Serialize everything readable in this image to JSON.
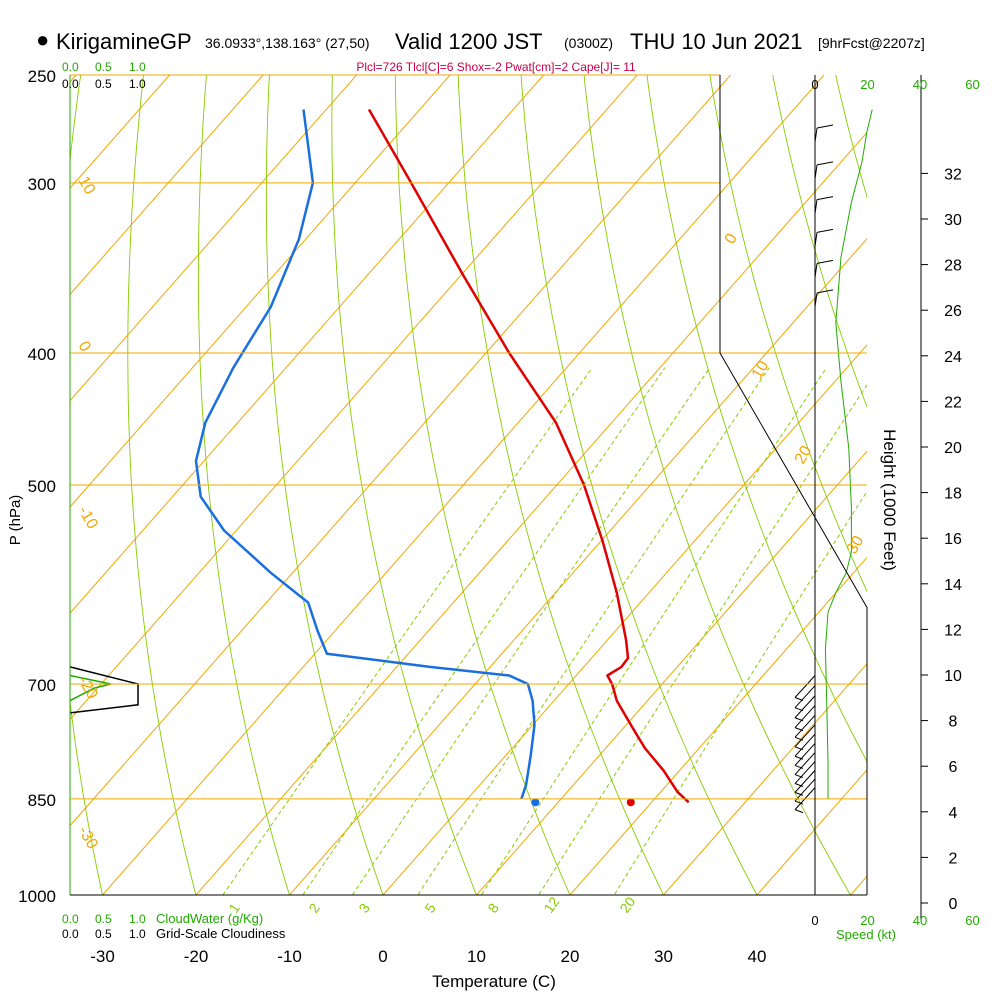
{
  "header": {
    "station": "KirigamineGP",
    "coords": "36.0933°,138.163° (27,50)",
    "valid": "Valid 1200 JST",
    "utc": "(0300Z)",
    "date": "THU 10 Jun 2021",
    "forecast": "[9hrFcst@2207z]"
  },
  "indices": "Plcl=726 Tlcl[C]=6 Shox=-2 Pwat[cm]=2 Cape[J]= 11",
  "cloud_scale": [
    "0.0",
    "0.5",
    "1.0"
  ],
  "cloudwater_label": "CloudWater (g/Kg)",
  "cloudiness_label": "Grid-Scale Cloudiness",
  "speed_ticks": [
    "0",
    "20",
    "40",
    "60"
  ],
  "speed_label": "Speed (kt)",
  "colors": {
    "isotherm": "#f0a800",
    "dry_adiabat": "#88cc00",
    "mixing_ratio": "#88cc00",
    "temperature": "#e00000",
    "dewpoint": "#1a6fe0",
    "green_text": "#22aa00",
    "index_text": "#c8004a"
  },
  "chart_data": {
    "type": "line",
    "xlabel": "Temperature (C)",
    "ylabel": "P (hPa)",
    "y2label": "Height (1000 Feet)",
    "x_ticks": [
      -30,
      -20,
      -10,
      0,
      10,
      20,
      30,
      40
    ],
    "p_ticks": [
      250,
      300,
      400,
      500,
      700,
      850,
      1000
    ],
    "height_ticks": [
      0,
      2,
      4,
      6,
      8,
      10,
      12,
      14,
      16,
      18,
      20,
      22,
      24,
      26,
      28,
      30,
      32
    ],
    "isotherm_labels": [
      "10",
      "0",
      "-10",
      "-20",
      "-30",
      "0",
      "10",
      "20",
      "30"
    ],
    "dry_adiabat_labels": [
      "0",
      "10",
      "20",
      "30"
    ],
    "mixing_ratio_labels": [
      "1",
      "2",
      "3",
      "5",
      "8",
      "12",
      "20"
    ],
    "series": [
      {
        "name": "Temperature",
        "points": [
          [
            -1.5,
            265
          ],
          [
            3,
            300
          ],
          [
            8.5,
            350
          ],
          [
            13.5,
            400
          ],
          [
            18.5,
            450
          ],
          [
            21.5,
            500
          ],
          [
            23.5,
            550
          ],
          [
            25,
            600
          ],
          [
            26,
            650
          ],
          [
            26.2,
            670
          ],
          [
            25.5,
            680
          ],
          [
            24,
            690
          ],
          [
            24.5,
            700
          ],
          [
            25,
            720
          ],
          [
            26.5,
            750
          ],
          [
            28,
            780
          ],
          [
            30,
            810
          ],
          [
            31.5,
            840
          ],
          [
            32.7,
            855
          ]
        ]
      },
      {
        "name": "Dewpoint",
        "points": [
          [
            -8.5,
            265
          ],
          [
            -7.5,
            300
          ],
          [
            -9,
            330
          ],
          [
            -12,
            370
          ],
          [
            -16,
            410
          ],
          [
            -19,
            450
          ],
          [
            -20,
            480
          ],
          [
            -19.5,
            510
          ],
          [
            -17,
            540
          ],
          [
            -12,
            580
          ],
          [
            -8,
            610
          ],
          [
            -7,
            640
          ],
          [
            -6,
            665
          ],
          [
            5,
            680
          ],
          [
            13.5,
            690
          ],
          [
            15.5,
            700
          ],
          [
            16,
            720
          ],
          [
            16.2,
            750
          ],
          [
            15.8,
            790
          ],
          [
            15.3,
            830
          ],
          [
            14.8,
            850
          ]
        ]
      }
    ],
    "surface": [
      {
        "name": "temperature",
        "t": 26.5,
        "p": 855
      },
      {
        "name": "dewpoint",
        "t": 16.3,
        "p": 855
      }
    ],
    "wind_speed_profile": [
      [
        5,
        850
      ],
      [
        5,
        800
      ],
      [
        4.5,
        720
      ],
      [
        4,
        660
      ],
      [
        5,
        620
      ],
      [
        8,
        600
      ],
      [
        12,
        580
      ],
      [
        14,
        560
      ],
      [
        14,
        520
      ],
      [
        13,
        470
      ],
      [
        10,
        420
      ],
      [
        8,
        380
      ],
      [
        10,
        340
      ],
      [
        14,
        310
      ],
      [
        18,
        290
      ],
      [
        20,
        275
      ],
      [
        22,
        265
      ]
    ],
    "cloudiness_profile": [
      [
        0,
        680
      ],
      [
        1.0,
        700
      ],
      [
        1.0,
        725
      ],
      [
        0,
        735
      ]
    ],
    "cloudwater_profile": [
      [
        0,
        690
      ],
      [
        0.6,
        700
      ],
      [
        0.35,
        705
      ],
      [
        0,
        720
      ]
    ]
  }
}
